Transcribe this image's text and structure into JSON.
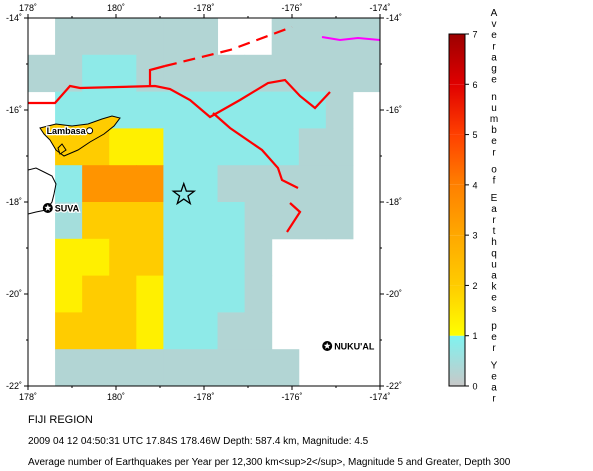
{
  "map": {
    "x_ticks": [
      {
        "lon": 178,
        "label": "178˚"
      },
      {
        "lon": 180,
        "label": "180˚"
      },
      {
        "lon": 182,
        "label": "-178˚"
      },
      {
        "lon": 184,
        "label": "-176˚"
      },
      {
        "lon": 186,
        "label": "-174˚"
      }
    ],
    "y_ticks": [
      {
        "lat": -14,
        "label": "-14˚"
      },
      {
        "lat": -16,
        "label": "-16˚"
      },
      {
        "lat": -18,
        "label": "-18˚"
      },
      {
        "lat": -20,
        "label": "-20˚"
      },
      {
        "lat": -22,
        "label": "-22˚"
      }
    ],
    "cell_levels_comment": "",
    "cells": [
      [
        0,
        0.3,
        0.3,
        0.3,
        0.3,
        0.3,
        0.3,
        0,
        0,
        0.3,
        0.3,
        0.3,
        0.3
      ],
      [
        0.3,
        0.3,
        0.8,
        0.8,
        0.3,
        0.3,
        0.3,
        0.3,
        0.3,
        0.3,
        0.3,
        0.3,
        0.3
      ],
      [
        0,
        0.8,
        0.8,
        0.8,
        0.8,
        0.8,
        0.8,
        0.8,
        0.8,
        0.8,
        0.8,
        0.3,
        0
      ],
      [
        0,
        2,
        2,
        1.3,
        1.3,
        0.8,
        0.8,
        0.8,
        0.8,
        0.8,
        0.3,
        0.3,
        0
      ],
      [
        0,
        0.8,
        3.5,
        3.5,
        3.5,
        0.8,
        0.8,
        0.3,
        0.3,
        0.3,
        0.3,
        0.3,
        0
      ],
      [
        0,
        0.5,
        2,
        2,
        2,
        0.8,
        0.8,
        0.8,
        0.3,
        0.3,
        0.3,
        0.3,
        0
      ],
      [
        0,
        1.3,
        1.3,
        2,
        2,
        0.8,
        0.8,
        0.8,
        0.3,
        0,
        0,
        0,
        0
      ],
      [
        0,
        1.3,
        2,
        2,
        1.3,
        0.8,
        0.8,
        0.8,
        0.3,
        0,
        0,
        0,
        0
      ],
      [
        0,
        2,
        2,
        2,
        1.3,
        0.8,
        0.8,
        0.3,
        0.3,
        0,
        0,
        0,
        0
      ],
      [
        0,
        0.3,
        0.3,
        0.3,
        0.3,
        0.3,
        0.3,
        0.3,
        0.3,
        0.3,
        0,
        0,
        0
      ]
    ],
    "places": [
      {
        "name": "Lambasa",
        "label": "Lambasa",
        "lon": 179.4,
        "lat": -16.45,
        "marker": "open-circle-icon"
      },
      {
        "name": "Suva",
        "label": "SUVA",
        "lon": 178.45,
        "lat": -18.13,
        "marker": "capital-star-icon"
      },
      {
        "name": "Nukualofa",
        "label": "NUKU'AL",
        "lon": 184.8,
        "lat": -21.13,
        "marker": "capital-star-icon"
      }
    ],
    "epicenter": {
      "lon": 181.54,
      "lat": -17.84,
      "marker": "star-icon"
    },
    "colors": {
      "plate_boundary": "#ff0000",
      "ridge": "#ff00ff",
      "coast": "#000000",
      "island_fill": "#ffcc00"
    }
  },
  "colorbar": {
    "ticks": [
      "0",
      "1",
      "2",
      "3",
      "4",
      "5",
      "6",
      "7"
    ],
    "label": "Average number of Earthquakes per Year",
    "scale": [
      {
        "from": 0,
        "to": 1,
        "top": "#7ff3f0",
        "bottom": "#c8c8c8"
      },
      {
        "from": 1,
        "to": 2,
        "top": "#ffcc00",
        "bottom": "#ffff00"
      },
      {
        "from": 2,
        "to": 3,
        "top": "#ffa800",
        "bottom": "#ffcc00"
      },
      {
        "from": 3,
        "to": 4,
        "top": "#ff8000",
        "bottom": "#ffa800"
      },
      {
        "from": 4,
        "to": 5,
        "top": "#ff4000",
        "bottom": "#ff8000"
      },
      {
        "from": 5,
        "to": 6,
        "top": "#e00000",
        "bottom": "#ff4000"
      },
      {
        "from": 6,
        "to": 7,
        "top": "#9c0000",
        "bottom": "#e00000"
      }
    ]
  },
  "captions": {
    "region": "FIJI REGION",
    "event": "2009 04 12 04:50:31 UTC 17.84S 178.46W Depth: 587.4 km, Magnitude: 4.5",
    "note": "Average number of Earthquakes per Year per 12,300 km<sup>2</sup>, Magnitude 5 and Greater, Depth 300"
  }
}
